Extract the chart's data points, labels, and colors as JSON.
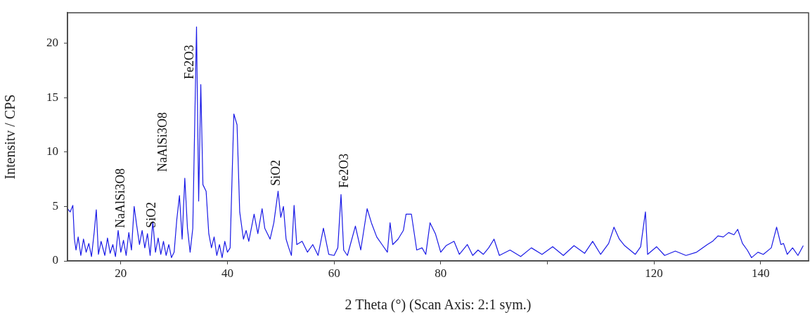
{
  "chart_data": {
    "type": "line",
    "xlabel": "2 Theta (°) (Scan Axis: 2:1 sym.)",
    "ylabel": "Intensitv / CPS",
    "xlim": [
      10,
      149
    ],
    "ylim": [
      0,
      22.8
    ],
    "xticks": [
      20,
      40,
      60,
      80,
      {
        "value": 100,
        "label": null
      },
      120,
      140
    ],
    "yticks": [
      0,
      5,
      10,
      15,
      20
    ],
    "grid": false,
    "legend": false,
    "marker": "none",
    "line_style": "solid",
    "annotations": [
      "NaAlSi3O8",
      "SiO2",
      "NaAlSi3O8",
      "Fe2O3",
      "SiO2",
      "Fe2O3"
    ],
    "series": [
      {
        "color": "#1a1ae6",
        "x": [
          10,
          10.5,
          11,
          11.3,
          11.6,
          12,
          12.5,
          13,
          13.5,
          14,
          14.5,
          15,
          15.4,
          15.8,
          16.3,
          17,
          17.5,
          18,
          18.5,
          19,
          19.5,
          20,
          20.5,
          21,
          21.5,
          22,
          22.5,
          23,
          23.5,
          24,
          24.5,
          25,
          25.5,
          26,
          26.5,
          27,
          27.5,
          28,
          28.5,
          29,
          29.5,
          30,
          30.5,
          31,
          31.5,
          32,
          32.5,
          33,
          33.5,
          34.2,
          34.6,
          35,
          35.4,
          36,
          36.5,
          37,
          37.5,
          38,
          38.5,
          39,
          39.5,
          40,
          40.5,
          41.2,
          41.8,
          42.3,
          43,
          43.5,
          44,
          45,
          45.7,
          46.5,
          47,
          48,
          48.7,
          49.5,
          50,
          50.5,
          51,
          51.5,
          52,
          52.5,
          53,
          54,
          55,
          56,
          57,
          58,
          59,
          60,
          60.7,
          61.3,
          61.8,
          62.5,
          63,
          64,
          65,
          66.2,
          67,
          68,
          69,
          70,
          70.5,
          71,
          72,
          73,
          73.5,
          74.5,
          75.5,
          76.5,
          77.2,
          78,
          79,
          80,
          81,
          82.5,
          83.5,
          85,
          86,
          87,
          88,
          89,
          90,
          91,
          93,
          95,
          97,
          99,
          101,
          103,
          105,
          107,
          108.5,
          110,
          111.5,
          112.5,
          113.5,
          114.5,
          115.5,
          116.5,
          117.5,
          118.4,
          118.8,
          119.3,
          120.5,
          122,
          124,
          126,
          128,
          130,
          131,
          132,
          133,
          134,
          135,
          135.7,
          136.6,
          137.5,
          138.3,
          139.5,
          140.5,
          142,
          143,
          143.8,
          144.3,
          145,
          146,
          147,
          148
        ],
        "values": [
          4.8,
          4.5,
          5.1,
          2,
          1,
          2.2,
          0.5,
          2,
          0.8,
          1.6,
          0.4,
          2.6,
          4.7,
          0.6,
          1.8,
          0.5,
          2.1,
          0.7,
          1.5,
          0.4,
          2.8,
          0.8,
          1.9,
          0.5,
          2.6,
          1,
          5,
          3.2,
          1.5,
          2.8,
          1.2,
          2.5,
          0.5,
          3.6,
          0.8,
          2.1,
          0.6,
          1.8,
          0.5,
          1.5,
          0.3,
          0.8,
          3.8,
          6,
          2,
          7.6,
          3,
          0.8,
          3,
          21.5,
          5.5,
          16.2,
          7,
          6.4,
          2.5,
          1.2,
          2.2,
          0.5,
          1.5,
          0.3,
          1.8,
          0.8,
          1.2,
          13.5,
          12.5,
          4.5,
          2,
          2.8,
          1.8,
          4.3,
          2.5,
          4.8,
          3,
          2,
          3.5,
          6.4,
          4,
          5,
          2,
          1.2,
          0.5,
          5.1,
          1.5,
          1.8,
          0.8,
          1.5,
          0.5,
          3,
          0.6,
          0.5,
          1.2,
          6.1,
          1,
          0.5,
          1.4,
          3.2,
          1,
          4.8,
          3.5,
          2.2,
          1.5,
          0.8,
          3.5,
          1.5,
          2,
          2.8,
          4.3,
          4.3,
          1,
          1.2,
          0.6,
          3.5,
          2.5,
          0.8,
          1.4,
          1.8,
          0.6,
          1.5,
          0.5,
          1,
          0.6,
          1.2,
          2,
          0.5,
          1,
          0.4,
          1.2,
          0.6,
          1.3,
          0.5,
          1.4,
          0.7,
          1.8,
          0.6,
          1.6,
          3.1,
          2,
          1.4,
          1,
          0.6,
          1.3,
          4.5,
          0.6,
          0.8,
          1.3,
          0.5,
          0.9,
          0.5,
          0.8,
          1.5,
          1.8,
          2.3,
          2.2,
          2.6,
          2.4,
          2.9,
          1.6,
          1,
          0.3,
          0.8,
          0.6,
          1.2,
          3.1,
          1.5,
          1.6,
          0.6,
          1.2,
          0.5,
          1.4
        ]
      }
    ]
  }
}
